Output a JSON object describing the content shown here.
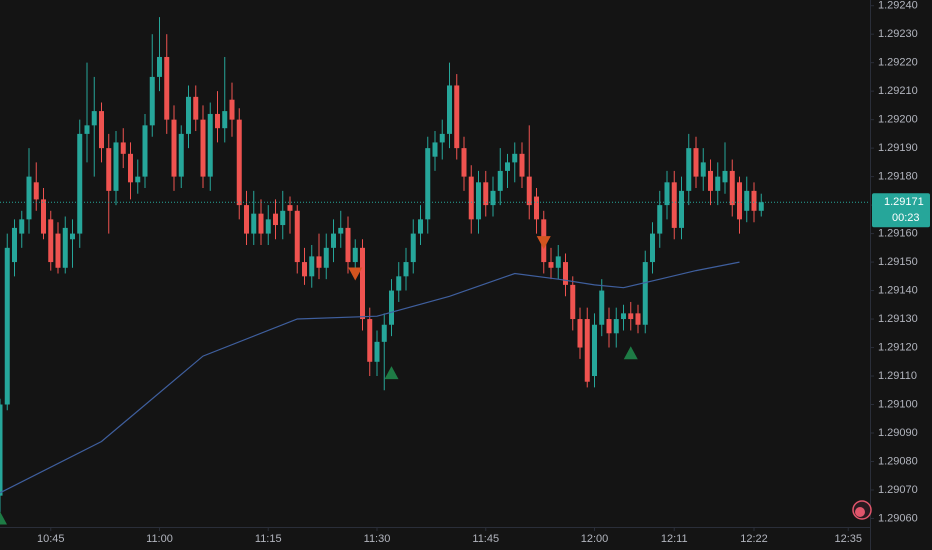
{
  "chart_data": {
    "type": "candlestick",
    "up_color": "#26a69a",
    "down_color": "#ef5350",
    "xlim": [
      "10:38",
      "12:38"
    ],
    "xticks": [
      "10:45",
      "11:00",
      "11:15",
      "11:30",
      "11:45",
      "12:00",
      "12:11",
      "12:22",
      "12:35"
    ],
    "ylim": [
      1.29057,
      1.29242
    ],
    "yticks": [
      {
        "value": 1.2924,
        "label": "1.29240"
      },
      {
        "value": 1.2923,
        "label": "1.29230"
      },
      {
        "value": 1.2922,
        "label": "1.29220"
      },
      {
        "value": 1.2921,
        "label": "1.29210"
      },
      {
        "value": 1.292,
        "label": "1.29200"
      },
      {
        "value": 1.2919,
        "label": "1.29190"
      },
      {
        "value": 1.2918,
        "label": "1.29180"
      },
      {
        "value": 1.2917,
        "label": "1.29170"
      },
      {
        "value": 1.2916,
        "label": "1.29160"
      },
      {
        "value": 1.2915,
        "label": "1.29150"
      },
      {
        "value": 1.2914,
        "label": "1.29140"
      },
      {
        "value": 1.2913,
        "label": "1.29130"
      },
      {
        "value": 1.2912,
        "label": "1.29120"
      },
      {
        "value": 1.2911,
        "label": "1.29110"
      },
      {
        "value": 1.291,
        "label": "1.29100"
      },
      {
        "value": 1.2909,
        "label": "1.29090"
      },
      {
        "value": 1.2908,
        "label": "1.29080"
      },
      {
        "value": 1.2907,
        "label": "1.29070"
      },
      {
        "value": 1.2906,
        "label": "1.29060"
      }
    ],
    "x": [
      "10:38",
      "10:39",
      "10:40",
      "10:41",
      "10:42",
      "10:43",
      "10:44",
      "10:45",
      "10:46",
      "10:47",
      "10:48",
      "10:49",
      "10:50",
      "10:51",
      "10:52",
      "10:53",
      "10:54",
      "10:55",
      "10:56",
      "10:57",
      "10:58",
      "10:59",
      "11:00",
      "11:01",
      "11:02",
      "11:03",
      "11:04",
      "11:05",
      "11:06",
      "11:07",
      "11:08",
      "11:09",
      "11:10",
      "11:11",
      "11:12",
      "11:13",
      "11:14",
      "11:15",
      "11:16",
      "11:17",
      "11:18",
      "11:19",
      "11:20",
      "11:21",
      "11:22",
      "11:23",
      "11:24",
      "11:25",
      "11:26",
      "11:27",
      "11:28",
      "11:29",
      "11:30",
      "11:31",
      "11:32",
      "11:33",
      "11:34",
      "11:35",
      "11:36",
      "11:37",
      "11:38",
      "11:39",
      "11:40",
      "11:41",
      "11:42",
      "11:43",
      "11:44",
      "11:45",
      "11:46",
      "11:47",
      "11:48",
      "11:49",
      "11:50",
      "11:51",
      "11:52",
      "11:53",
      "11:54",
      "11:55",
      "11:56",
      "11:57",
      "11:58",
      "11:59",
      "12:00",
      "12:01",
      "12:02",
      "12:03",
      "12:04",
      "12:05",
      "12:06",
      "12:07",
      "12:08",
      "12:09",
      "12:10",
      "12:11",
      "12:12",
      "12:13",
      "12:14",
      "12:15",
      "12:16",
      "12:17",
      "12:18",
      "12:19",
      "12:20",
      "12:21",
      "12:22",
      "12:23"
    ],
    "candles": [
      [
        1.29068,
        1.29102,
        1.29062,
        1.291
      ],
      [
        1.291,
        1.2916,
        1.29098,
        1.29155
      ],
      [
        1.2915,
        1.29165,
        1.29145,
        1.29162
      ],
      [
        1.2916,
        1.29168,
        1.29155,
        1.29165
      ],
      [
        1.29165,
        1.2919,
        1.2916,
        1.2918
      ],
      [
        1.29178,
        1.29185,
        1.29168,
        1.29172
      ],
      [
        1.29172,
        1.29176,
        1.29158,
        1.2916
      ],
      [
        1.29165,
        1.29168,
        1.29147,
        1.2915
      ],
      [
        1.2916,
        1.29164,
        1.29146,
        1.29148
      ],
      [
        1.29148,
        1.29166,
        1.29146,
        1.29162
      ],
      [
        1.29158,
        1.29165,
        1.29148,
        1.2916
      ],
      [
        1.2916,
        1.292,
        1.29155,
        1.29195
      ],
      [
        1.29195,
        1.2922,
        1.29185,
        1.29198
      ],
      [
        1.29198,
        1.29215,
        1.2918,
        1.29203
      ],
      [
        1.29203,
        1.29206,
        1.29185,
        1.2919
      ],
      [
        1.2919,
        1.29195,
        1.2916,
        1.29175
      ],
      [
        1.29175,
        1.29196,
        1.2917,
        1.29192
      ],
      [
        1.29192,
        1.29197,
        1.29183,
        1.29188
      ],
      [
        1.29188,
        1.29192,
        1.29172,
        1.29178
      ],
      [
        1.29178,
        1.29186,
        1.29174,
        1.2918
      ],
      [
        1.2918,
        1.29202,
        1.29176,
        1.29198
      ],
      [
        1.29198,
        1.2923,
        1.29194,
        1.29215
      ],
      [
        1.29215,
        1.29236,
        1.2921,
        1.29222
      ],
      [
        1.29222,
        1.2923,
        1.29195,
        1.292
      ],
      [
        1.292,
        1.29205,
        1.29175,
        1.2918
      ],
      [
        1.2918,
        1.29198,
        1.29176,
        1.29195
      ],
      [
        1.29195,
        1.29212,
        1.2919,
        1.29208
      ],
      [
        1.29208,
        1.29212,
        1.29196,
        1.292
      ],
      [
        1.292,
        1.29205,
        1.29176,
        1.2918
      ],
      [
        1.2918,
        1.29206,
        1.29175,
        1.29202
      ],
      [
        1.29202,
        1.2921,
        1.29192,
        1.29197
      ],
      [
        1.29197,
        1.29222,
        1.29192,
        1.29203
      ],
      [
        1.29207,
        1.29213,
        1.29194,
        1.292
      ],
      [
        1.292,
        1.29204,
        1.29165,
        1.2917
      ],
      [
        1.2917,
        1.29175,
        1.29156,
        1.2916
      ],
      [
        1.2916,
        1.29175,
        1.29156,
        1.29167
      ],
      [
        1.29167,
        1.29172,
        1.29156,
        1.2916
      ],
      [
        1.2916,
        1.2917,
        1.29156,
        1.29165
      ],
      [
        1.29167,
        1.29172,
        1.29158,
        1.29163
      ],
      [
        1.29163,
        1.29175,
        1.29158,
        1.29168
      ],
      [
        1.2917,
        1.29173,
        1.2916,
        1.29168
      ],
      [
        1.29168,
        1.2917,
        1.29146,
        1.2915
      ],
      [
        1.2915,
        1.29155,
        1.29142,
        1.29145
      ],
      [
        1.29145,
        1.29156,
        1.29141,
        1.29152
      ],
      [
        1.29152,
        1.2916,
        1.29144,
        1.29148
      ],
      [
        1.29148,
        1.2916,
        1.29144,
        1.29155
      ],
      [
        1.29155,
        1.29165,
        1.2915,
        1.2916
      ],
      [
        1.2916,
        1.29168,
        1.29155,
        1.29162
      ],
      [
        1.29162,
        1.29166,
        1.29146,
        1.2915
      ],
      [
        1.2915,
        1.29158,
        1.29146,
        1.29155
      ],
      [
        1.29155,
        1.29158,
        1.29126,
        1.2913
      ],
      [
        1.2913,
        1.29134,
        1.2911,
        1.29115
      ],
      [
        1.29115,
        1.29126,
        1.2911,
        1.29122
      ],
      [
        1.29122,
        1.29132,
        1.29105,
        1.29128
      ],
      [
        1.29128,
        1.29144,
        1.29124,
        1.2914
      ],
      [
        1.2914,
        1.2915,
        1.29136,
        1.29145
      ],
      [
        1.29145,
        1.29155,
        1.2914,
        1.2915
      ],
      [
        1.2915,
        1.29165,
        1.29146,
        1.2916
      ],
      [
        1.2916,
        1.2917,
        1.29156,
        1.29165
      ],
      [
        1.29165,
        1.29194,
        1.2916,
        1.2919
      ],
      [
        1.29187,
        1.29196,
        1.29182,
        1.29192
      ],
      [
        1.29192,
        1.292,
        1.29186,
        1.29195
      ],
      [
        1.29195,
        1.2922,
        1.2919,
        1.29212
      ],
      [
        1.29212,
        1.29216,
        1.29186,
        1.2919
      ],
      [
        1.2919,
        1.29194,
        1.29175,
        1.2918
      ],
      [
        1.2918,
        1.29184,
        1.2916,
        1.29165
      ],
      [
        1.29165,
        1.29182,
        1.2916,
        1.29178
      ],
      [
        1.29178,
        1.29182,
        1.29166,
        1.2917
      ],
      [
        1.2917,
        1.2918,
        1.29166,
        1.29175
      ],
      [
        1.29175,
        1.2919,
        1.2917,
        1.29182
      ],
      [
        1.29182,
        1.29188,
        1.29176,
        1.29185
      ],
      [
        1.29185,
        1.29192,
        1.29178,
        1.29188
      ],
      [
        1.29188,
        1.29192,
        1.29176,
        1.2918
      ],
      [
        1.2918,
        1.29198,
        1.29165,
        1.2917
      ],
      [
        1.29173,
        1.29176,
        1.2916,
        1.29165
      ],
      [
        1.29165,
        1.29168,
        1.29146,
        1.2915
      ],
      [
        1.2915,
        1.29155,
        1.29144,
        1.29148
      ],
      [
        1.29148,
        1.29156,
        1.29144,
        1.29152
      ],
      [
        1.2915,
        1.29153,
        1.29138,
        1.29142
      ],
      [
        1.29142,
        1.29145,
        1.29126,
        1.2913
      ],
      [
        1.2913,
        1.29134,
        1.29116,
        1.2912
      ],
      [
        1.2913,
        1.29134,
        1.29106,
        1.29108
      ],
      [
        1.2911,
        1.29132,
        1.29106,
        1.29128
      ],
      [
        1.29128,
        1.29144,
        1.29124,
        1.2914
      ],
      [
        1.2913,
        1.29134,
        1.2912,
        1.29125
      ],
      [
        1.29125,
        1.29134,
        1.2912,
        1.2913
      ],
      [
        1.2913,
        1.29135,
        1.29126,
        1.29132
      ],
      [
        1.29132,
        1.29136,
        1.29126,
        1.2913
      ],
      [
        1.29132,
        1.29135,
        1.29125,
        1.29128
      ],
      [
        1.29128,
        1.29154,
        1.29125,
        1.2915
      ],
      [
        1.2915,
        1.29164,
        1.29146,
        1.2916
      ],
      [
        1.2916,
        1.29175,
        1.29155,
        1.2917
      ],
      [
        1.2917,
        1.29182,
        1.29165,
        1.29178
      ],
      [
        1.29178,
        1.29182,
        1.29158,
        1.29162
      ],
      [
        1.29162,
        1.2918,
        1.29158,
        1.29175
      ],
      [
        1.29175,
        1.29195,
        1.2917,
        1.2919
      ],
      [
        1.2919,
        1.29194,
        1.29176,
        1.2918
      ],
      [
        1.2918,
        1.2919,
        1.29175,
        1.29185
      ],
      [
        1.29182,
        1.29186,
        1.2917,
        1.29175
      ],
      [
        1.29175,
        1.29185,
        1.2917,
        1.2918
      ],
      [
        1.29178,
        1.29192,
        1.29174,
        1.29182
      ],
      [
        1.29182,
        1.29186,
        1.29166,
        1.2917
      ],
      [
        1.29178,
        1.2918,
        1.2916,
        1.29165
      ],
      [
        1.29168,
        1.2918,
        1.29164,
        1.29175
      ],
      [
        1.29175,
        1.29178,
        1.29164,
        1.29168
      ],
      [
        1.29168,
        1.29174,
        1.29166,
        1.29171
      ]
    ],
    "ma": {
      "color": "#3f5f9e",
      "x": [
        "10:38",
        "10:52",
        "11:06",
        "11:19",
        "11:30",
        "11:40",
        "11:49",
        "11:55",
        "12:00",
        "12:04",
        "12:09",
        "12:14",
        "12:20"
      ],
      "values": [
        1.29069,
        1.29087,
        1.29117,
        1.2913,
        1.29131,
        1.29138,
        1.29146,
        1.29144,
        1.29142,
        1.29141,
        1.29144,
        1.29147,
        1.2915
      ]
    },
    "buy_signals": {
      "color": "#1e7b45",
      "x": [
        "10:38",
        "11:32",
        "12:05"
      ],
      "values": [
        1.2906,
        1.29111,
        1.29118
      ]
    },
    "sell_signals": {
      "color": "#d4541f",
      "x": [
        "11:27",
        "11:53"
      ],
      "values": [
        1.29146,
        1.29157
      ]
    },
    "last_price": 1.29171,
    "countdown": "00:23"
  }
}
